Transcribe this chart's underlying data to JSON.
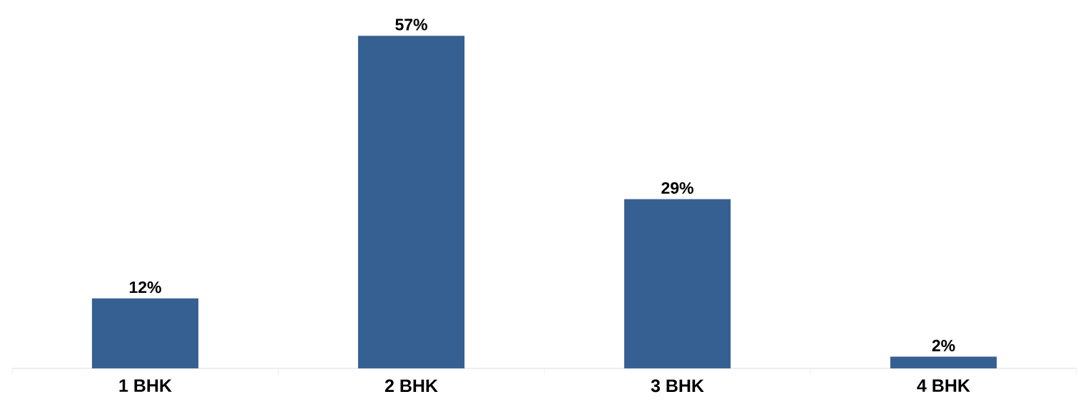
{
  "chart_data": {
    "type": "bar",
    "categories": [
      "1 BHK",
      "2 BHK",
      "3 BHK",
      "4 BHK"
    ],
    "values": [
      12,
      57,
      29,
      2
    ],
    "value_labels": [
      "12%",
      "57%",
      "29%",
      "2%"
    ],
    "color": "#376092"
  }
}
